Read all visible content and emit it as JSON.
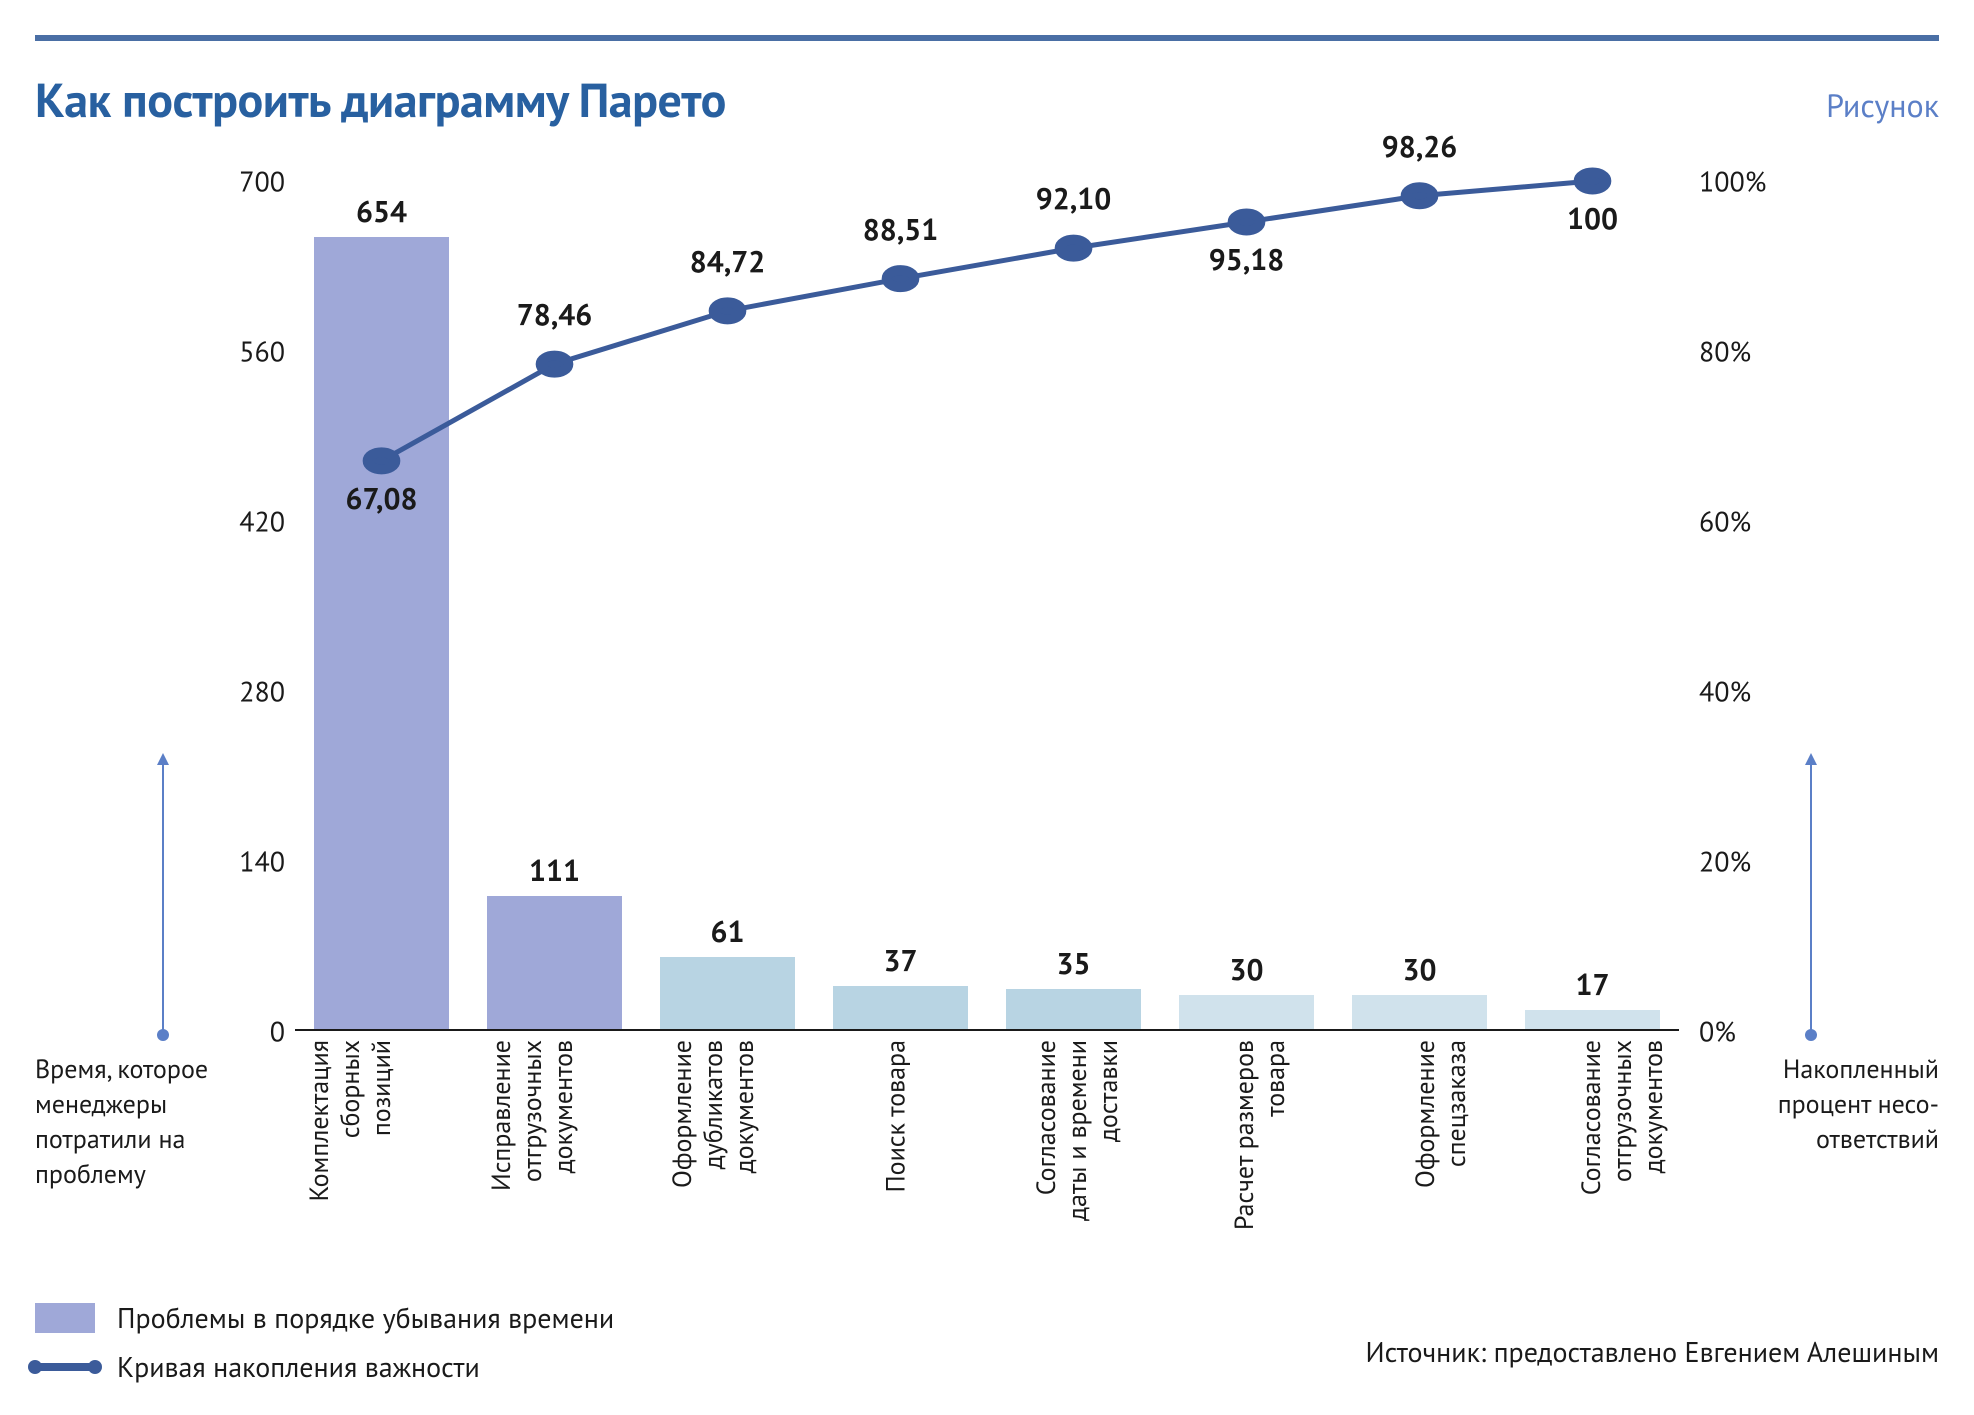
{
  "colors": {
    "rule": "#4a6fa5",
    "title": "#2860a0",
    "figure_label": "#5b7fc7",
    "text": "#1a1a1a",
    "bar_primary": "#9fa8d8",
    "bar_secondary": "#b8d4e3",
    "bar_tertiary": "#d0e2ec",
    "line": "#3b5b9a",
    "marker": "#3b5b9a",
    "arrow": "#5b7fc7",
    "baseline": "#1a1a1a"
  },
  "title": "Как построить диаграмму Парето",
  "figure_label": "Рисунок",
  "chart": {
    "type": "bar+line",
    "y_left": {
      "min": 0,
      "max": 700,
      "step": 140,
      "fmt": "int"
    },
    "y_right": {
      "min": 0,
      "max": 100,
      "step": 20,
      "fmt": "pct"
    },
    "categories": [
      {
        "lines": [
          "Комплектация",
          "сборных",
          "позиций"
        ]
      },
      {
        "lines": [
          "Исправление",
          "отгрузочных",
          "документов"
        ]
      },
      {
        "lines": [
          "Оформление",
          "дубликатов",
          "документов"
        ]
      },
      {
        "lines": [
          "Поиск товара"
        ]
      },
      {
        "lines": [
          "Согласование",
          "даты и времени",
          "доставки"
        ]
      },
      {
        "lines": [
          "Расчет размеров",
          "товара"
        ]
      },
      {
        "lines": [
          "Оформление",
          "спецзаказа"
        ]
      },
      {
        "lines": [
          "Согласование",
          "отгрузочных",
          "документов"
        ]
      }
    ],
    "bars": [
      654,
      111,
      61,
      37,
      35,
      30,
      30,
      17
    ],
    "bar_labels": [
      "654",
      "111",
      "61",
      "37",
      "35",
      "30",
      "30",
      "17"
    ],
    "bar_color_idx": [
      0,
      0,
      1,
      1,
      1,
      2,
      2,
      2
    ],
    "line": [
      67.08,
      78.46,
      84.72,
      88.51,
      92.1,
      95.18,
      98.26,
      100
    ],
    "line_labels": [
      "67,08",
      "78,46",
      "84,72",
      "88,51",
      "92,10",
      "95,18",
      "98,26",
      "100"
    ],
    "line_label_side": [
      "below",
      "above",
      "above",
      "above",
      "above",
      "below",
      "above",
      "below"
    ],
    "line_width": 5,
    "marker_r": 10
  },
  "axis_notes": {
    "left": "Время, которое менеджеры потратили на проблему",
    "right": "Накоплен­ный про­цент несо­ответствий"
  },
  "legend": {
    "bar": "Проблемы в порядке убывания времени",
    "line": "Кривая накопления важности"
  },
  "source": "Источник: предоставлено Евгением Алешиным"
}
